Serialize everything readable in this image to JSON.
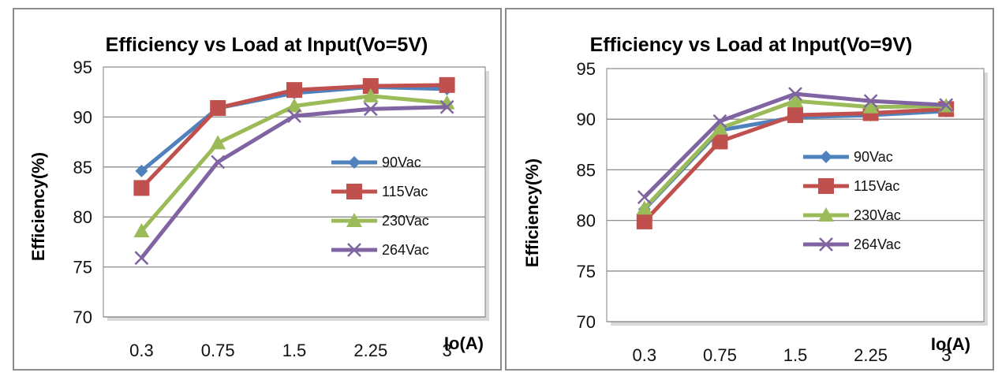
{
  "chart_data": [
    {
      "type": "line",
      "title": "Efficiency vs Load at Input(Vo=5V)",
      "xlabel": "Io(A)",
      "ylabel": "Efficiency(%)",
      "categories": [
        "0.3",
        "0.75",
        "1.5",
        "2.25",
        "3"
      ],
      "ylim": [
        70,
        95
      ],
      "yticks": [
        "70",
        "75",
        "80",
        "85",
        "90",
        "95"
      ],
      "series": [
        {
          "name": "90Vac",
          "values": [
            84.6,
            90.9,
            92.4,
            93.0,
            92.8
          ],
          "color": "#4F81BD",
          "marker": "diamond"
        },
        {
          "name": "115Vac",
          "values": [
            82.9,
            90.9,
            92.7,
            93.1,
            93.2
          ],
          "color": "#C0504D",
          "marker": "square"
        },
        {
          "name": "230Vac",
          "values": [
            78.6,
            87.4,
            91.1,
            92.1,
            91.4
          ],
          "color": "#9BBB59",
          "marker": "triangle"
        },
        {
          "name": "264Vac",
          "values": [
            75.9,
            85.5,
            90.1,
            90.8,
            91.0
          ],
          "color": "#8064A2",
          "marker": "x"
        }
      ]
    },
    {
      "type": "line",
      "title": "Efficiency vs Load at Input(Vo=9V)",
      "xlabel": "Io(A)",
      "ylabel": "Efficiency(%)",
      "categories": [
        "0.3",
        "0.75",
        "1.5",
        "2.25",
        "3"
      ],
      "ylim": [
        70,
        95
      ],
      "yticks": [
        "70",
        "75",
        "80",
        "85",
        "90",
        "95"
      ],
      "series": [
        {
          "name": "90Vac",
          "values": [
            81.1,
            88.9,
            90.2,
            90.4,
            90.8
          ],
          "color": "#4F81BD",
          "marker": "diamond"
        },
        {
          "name": "115Vac",
          "values": [
            79.9,
            87.8,
            90.4,
            90.6,
            91.0
          ],
          "color": "#C0504D",
          "marker": "square"
        },
        {
          "name": "230Vac",
          "values": [
            81.2,
            89.1,
            91.8,
            91.2,
            91.3
          ],
          "color": "#9BBB59",
          "marker": "triangle"
        },
        {
          "name": "264Vac",
          "values": [
            82.3,
            89.8,
            92.5,
            91.8,
            91.4
          ],
          "color": "#8064A2",
          "marker": "x"
        }
      ]
    }
  ]
}
